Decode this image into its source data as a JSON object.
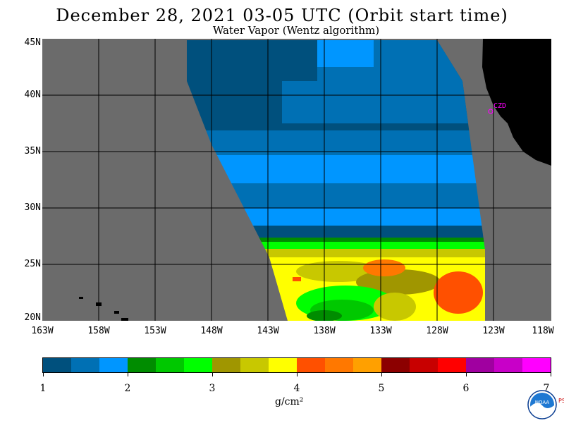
{
  "header": {
    "title": "December 28, 2021  03-05 UTC  (Orbit start time)",
    "subtitle": "Water Vapor (Wentz algorithm)"
  },
  "map": {
    "latitude_labels": [
      "45N",
      "40N",
      "35N",
      "30N",
      "25N",
      "20N"
    ],
    "longitude_labels": [
      "163W",
      "158W",
      "153W",
      "148W",
      "143W",
      "138W",
      "133W",
      "128W",
      "123W",
      "118W"
    ],
    "station_label": "CZD",
    "colors": {
      "background_gray": "#6b6b6b",
      "land": "#000000",
      "grid": "#000000",
      "station": "#ff00ff"
    }
  },
  "colorbar": {
    "colors": [
      "#00507d",
      "#0070b4",
      "#0096ff",
      "#008c00",
      "#00c800",
      "#00ff00",
      "#a09600",
      "#c8c800",
      "#ffff00",
      "#ff5000",
      "#ff7800",
      "#ffa000",
      "#8c0000",
      "#c80000",
      "#ff0000",
      "#a000a0",
      "#c800c8",
      "#ff00ff"
    ],
    "tick_labels": [
      "1",
      "2",
      "3",
      "4",
      "5",
      "6",
      "7"
    ],
    "unit": "g/cm²"
  },
  "logo": {
    "text": "NOAA",
    "side_text": "PSL"
  }
}
